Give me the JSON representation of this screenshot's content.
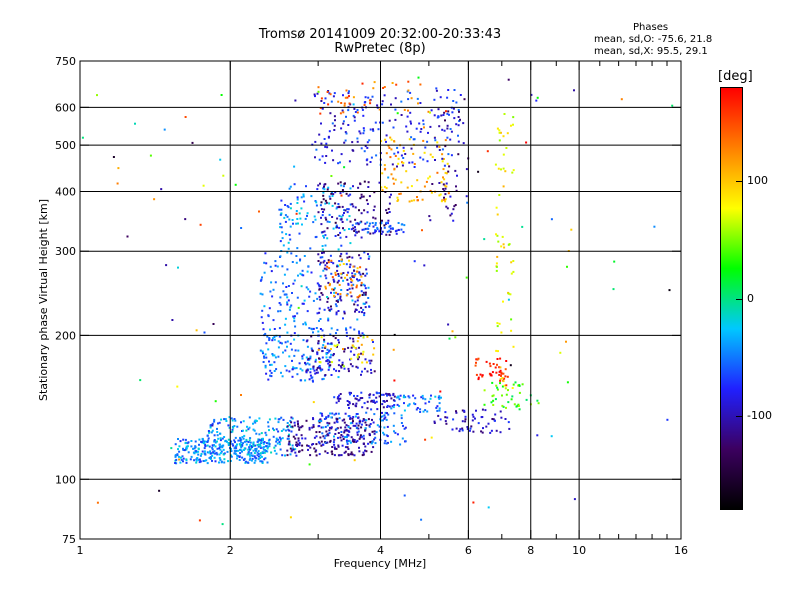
{
  "title": "Tromsø 20141009 20:32:00-20:33:43",
  "subtitle": "RwPretec (8p)",
  "info": {
    "heading": "Phases",
    "line_o": "mean, sd,O: -75.6, 21.8",
    "line_x": "mean, sd,X:  95.5, 29.1"
  },
  "colorbar": {
    "unit_label": "[deg]",
    "ticks": [
      "100",
      "0",
      "-100"
    ],
    "tick_values": [
      100,
      0,
      -100
    ],
    "range": [
      -180,
      180
    ],
    "stops": [
      "#000000",
      "#3c0060",
      "#2020ff",
      "#00c8ff",
      "#00ff00",
      "#ffff00",
      "#ff8000",
      "#ff0000"
    ]
  },
  "chart_data": {
    "type": "scatter",
    "title": "Tromsø 20141009 20:32:00-20:33:43",
    "subtitle": "RwPretec (8p)",
    "xlabel": "Frequency [MHz]",
    "ylabel": "Stationary phase Virtual Height [km]",
    "x_scale": "log",
    "y_scale": "log",
    "xlim": [
      1,
      16
    ],
    "ylim": [
      75,
      750
    ],
    "x_ticks": [
      1,
      2,
      4,
      6,
      8,
      10,
      16
    ],
    "x_tick_labels": [
      "1",
      "2",
      "4",
      "6",
      "8",
      "10",
      "16"
    ],
    "x_minor_ticks": [
      3,
      5,
      7,
      9,
      11,
      12,
      13,
      14,
      15
    ],
    "y_ticks": [
      75,
      100,
      200,
      300,
      400,
      500,
      600,
      750
    ],
    "y_tick_labels": [
      "75",
      "100",
      "200",
      "300",
      "400",
      "500",
      "600",
      "750"
    ],
    "grid": true,
    "color_by": "phase [deg]",
    "clusters": [
      {
        "x": [
          1.55,
          2.4
        ],
        "y": [
          108,
          122
        ],
        "phase": -45,
        "count": 280
      },
      {
        "x": [
          1.8,
          2.7
        ],
        "y": [
          112,
          135
        ],
        "phase": -40,
        "count": 180
      },
      {
        "x": [
          2.6,
          3.9
        ],
        "y": [
          112,
          135
        ],
        "phase": -110,
        "count": 220
      },
      {
        "x": [
          3.0,
          4.5
        ],
        "y": [
          118,
          138
        ],
        "phase": -60,
        "count": 120
      },
      {
        "x": [
          3.2,
          4.3
        ],
        "y": [
          140,
          152
        ],
        "phase": -90,
        "count": 80
      },
      {
        "x": [
          4.2,
          5.3
        ],
        "y": [
          138,
          150
        ],
        "phase": -50,
        "count": 50
      },
      {
        "x": [
          5.1,
          7.3
        ],
        "y": [
          125,
          140
        ],
        "phase": -95,
        "count": 60
      },
      {
        "x": [
          6.2,
          7.2
        ],
        "y": [
          160,
          180
        ],
        "phase": 175,
        "count": 40
      },
      {
        "x": [
          6.4,
          8.5
        ],
        "y": [
          140,
          160
        ],
        "phase": 30,
        "count": 40
      },
      {
        "x": [
          2.3,
          3.2
        ],
        "y": [
          160,
          200
        ],
        "phase": -55,
        "count": 140
      },
      {
        "x": [
          2.8,
          3.9
        ],
        "y": [
          165,
          200
        ],
        "phase": -100,
        "count": 90
      },
      {
        "x": [
          3.0,
          3.9
        ],
        "y": [
          175,
          200
        ],
        "phase": 90,
        "count": 30
      },
      {
        "x": [
          2.3,
          3.8
        ],
        "y": [
          200,
          300
        ],
        "phase": -55,
        "count": 200
      },
      {
        "x": [
          3.0,
          3.8
        ],
        "y": [
          220,
          300
        ],
        "phase": -110,
        "count": 90
      },
      {
        "x": [
          3.1,
          3.7
        ],
        "y": [
          240,
          290
        ],
        "phase": 120,
        "count": 40
      },
      {
        "x": [
          2.5,
          3.5
        ],
        "y": [
          300,
          420
        ],
        "phase": -45,
        "count": 120
      },
      {
        "x": [
          3.0,
          4.2
        ],
        "y": [
          320,
          420
        ],
        "phase": -115,
        "count": 110
      },
      {
        "x": [
          3.5,
          4.5
        ],
        "y": [
          325,
          345
        ],
        "phase": -70,
        "count": 60
      },
      {
        "x": [
          4.0,
          5.5
        ],
        "y": [
          380,
          520
        ],
        "phase": 110,
        "count": 90
      },
      {
        "x": [
          2.9,
          5.8
        ],
        "y": [
          450,
          660
        ],
        "phase": -80,
        "count": 200
      },
      {
        "x": [
          3.0,
          5.5
        ],
        "y": [
          580,
          680
        ],
        "phase": 140,
        "count": 40
      },
      {
        "x": [
          5.0,
          6.0
        ],
        "y": [
          340,
          650
        ],
        "phase": -110,
        "count": 50
      },
      {
        "x": [
          6.8,
          7.4
        ],
        "y": [
          150,
          600
        ],
        "phase": 80,
        "count": 60
      },
      {
        "x": [
          1.0,
          16.0
        ],
        "y": [
          80,
          700
        ],
        "phase": 0,
        "count": 120
      }
    ]
  }
}
